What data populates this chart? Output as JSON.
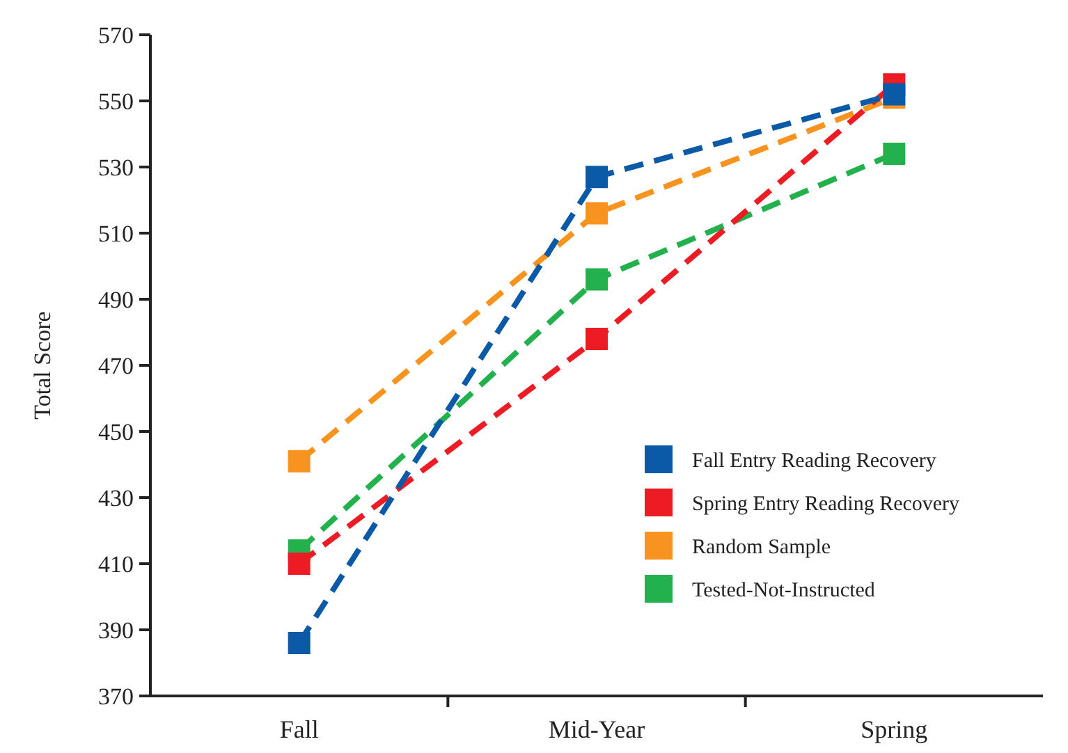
{
  "chart_data": {
    "type": "line",
    "ylabel": "Total Score",
    "categories": [
      "Fall",
      "Mid-Year",
      "Spring"
    ],
    "series": [
      {
        "name": "Fall Entry Reading Recovery",
        "color": "#0b5aa8",
        "values": [
          386,
          527,
          552
        ]
      },
      {
        "name": "Spring Entry Reading Recovery",
        "color": "#ec1c24",
        "values": [
          410,
          478,
          555
        ]
      },
      {
        "name": "Random Sample",
        "color": "#f7931e",
        "values": [
          441,
          516,
          551
        ]
      },
      {
        "name": "Tested-Not-Instructed",
        "color": "#22b14c",
        "values": [
          414,
          496,
          534
        ]
      }
    ],
    "ylim": [
      370,
      570
    ],
    "yticks": [
      370,
      390,
      410,
      430,
      450,
      470,
      490,
      510,
      530,
      550,
      570
    ],
    "legend": "bottom right",
    "marker": "square",
    "line_style": "dashed",
    "grid": false
  }
}
